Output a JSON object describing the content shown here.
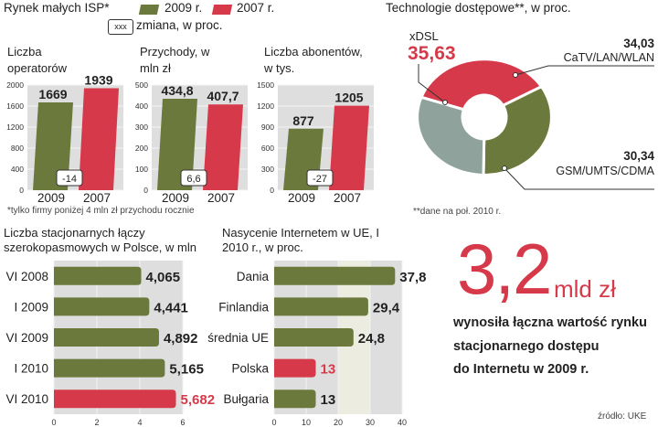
{
  "header": {
    "legend_title": "Rynek małych ISP*",
    "legend_2009": "2009 r.",
    "legend_2007": "2007 r.",
    "change_box": "xxx",
    "change_label": "zmiana, w proc.",
    "footnote": "*tylko firmy poniżej 4 mln zł przychodu rocznie"
  },
  "colors": {
    "green": "#6b7a3c",
    "red": "#d63a4a",
    "panel": "#dedede",
    "teal": "#8fa39c"
  },
  "chart_data": [
    {
      "type": "bar",
      "title": "Liczba operatorów",
      "categories": [
        "2009",
        "2007"
      ],
      "values": [
        1669,
        1939
      ],
      "value_labels": [
        "1669",
        "1939"
      ],
      "change": "-14",
      "ylim": [
        0,
        2000
      ],
      "yticks": [
        "0",
        "400",
        "800",
        "1200",
        "1600",
        "2000"
      ]
    },
    {
      "type": "bar",
      "title": "Przychody, w mln zł",
      "categories": [
        "2009",
        "2007"
      ],
      "values": [
        434.8,
        407.7
      ],
      "value_labels": [
        "434,8",
        "407,7"
      ],
      "change": "6,6",
      "ylim": [
        0,
        500
      ],
      "yticks": [
        "0",
        "100",
        "200",
        "300",
        "400",
        "500"
      ]
    },
    {
      "type": "bar",
      "title": "Liczba abonentów, w tys.",
      "categories": [
        "2009",
        "2007"
      ],
      "values": [
        877,
        1205
      ],
      "value_labels": [
        "877",
        "1205"
      ],
      "change": "-27",
      "ylim": [
        0,
        1500
      ],
      "yticks": [
        "0",
        "300",
        "600",
        "900",
        "1200",
        "1500"
      ]
    },
    {
      "type": "pie",
      "title": "Technologie dostępowe**, w proc.",
      "slices": [
        {
          "label": "xDSL",
          "value": 35.63,
          "value_label": "35,63"
        },
        {
          "label": "CaTV/LAN/WLAN",
          "value": 34.03,
          "value_label": "34,03"
        },
        {
          "label": "GSM/UMTS/CDMA",
          "value": 30.34,
          "value_label": "30,34"
        }
      ],
      "footnote": "**dane na poł. 2010 r."
    },
    {
      "type": "bar",
      "orientation": "horizontal",
      "title": "Liczba stacjonarnych łączy szerokopasmowych w Polsce, w mln",
      "categories": [
        "VI 2008",
        "I 2009",
        "VI 2009",
        "I 2010",
        "VI 2010"
      ],
      "values": [
        4.065,
        4.441,
        4.892,
        5.165,
        5.682
      ],
      "value_labels": [
        "4,065",
        "4,441",
        "4,892",
        "5,165",
        "5,682"
      ],
      "xlim": [
        0,
        6
      ],
      "xticks": [
        "0",
        "2",
        "4",
        "6"
      ]
    },
    {
      "type": "bar",
      "orientation": "horizontal",
      "title": "Nasycenie Internetem w UE, I 2010 r., w proc.",
      "categories": [
        "Dania",
        "Finlandia",
        "średnia UE",
        "Polska",
        "Bułgaria"
      ],
      "values": [
        37.8,
        29.4,
        24.8,
        13,
        13
      ],
      "value_labels": [
        "37,8",
        "29,4",
        "24,8",
        "13",
        "13"
      ],
      "xlim": [
        0,
        40
      ],
      "xticks": [
        "0",
        "10",
        "20",
        "30",
        "40"
      ]
    }
  ],
  "callout": {
    "big_number": "3,2",
    "unit": "mld zł",
    "line1": "wynosiła łączna wartość rynku",
    "line2": "stacjonarnego dostępu",
    "line3": "do Internetu w 2009 r."
  },
  "source": "źródło: UKE"
}
